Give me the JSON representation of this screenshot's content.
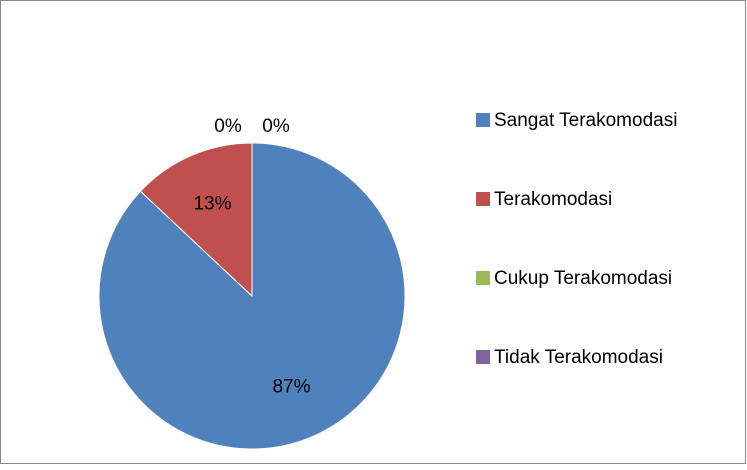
{
  "chart_data": {
    "type": "pie",
    "categories": [
      "Sangat Terakomodasi",
      "Terakomodasi",
      "Cukup Terakomodasi",
      "Tidak Terakomodasi"
    ],
    "values": [
      87,
      13,
      0,
      0
    ],
    "value_labels": [
      "87%",
      "13%",
      "0%",
      "0%"
    ],
    "colors": [
      "#4f81bd",
      "#c0504d",
      "#9bbb59",
      "#8064a2"
    ],
    "legend": "right"
  }
}
